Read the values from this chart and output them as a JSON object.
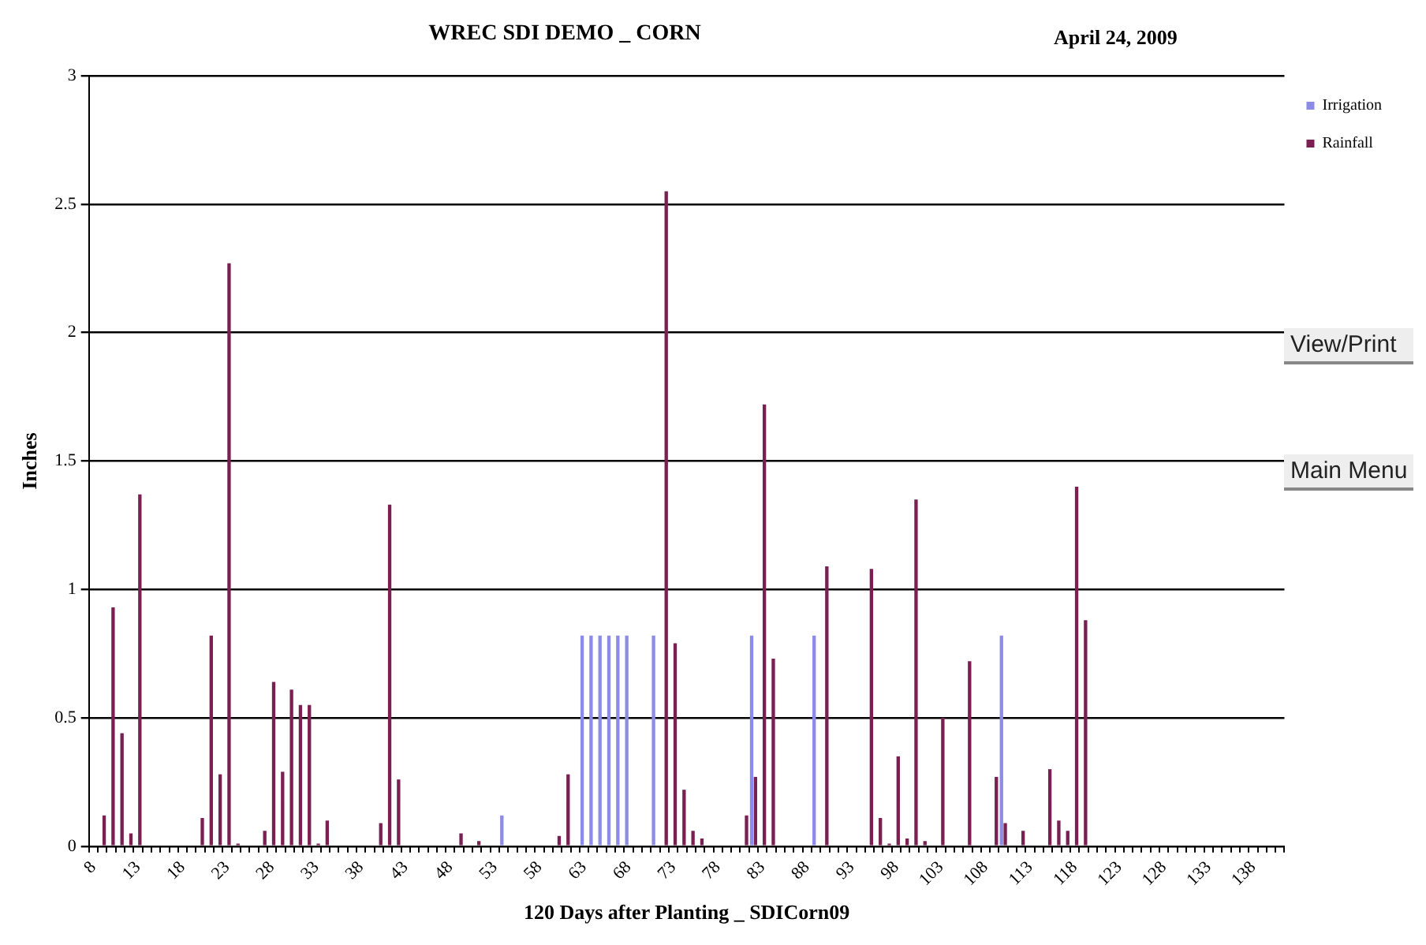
{
  "chart_data": {
    "type": "bar",
    "title": "WREC SDI DEMO _ CORN",
    "xlabel": "120 Days after Planting _ SDICorn09",
    "ylabel": "Inches",
    "annotations": [
      "April 24, 2009",
      "View/Print",
      "Main Menu"
    ],
    "categories": [
      "8",
      null,
      null,
      null,
      null,
      "13",
      null,
      null,
      null,
      null,
      "18",
      null,
      null,
      null,
      null,
      "23",
      null,
      null,
      null,
      null,
      "28",
      null,
      null,
      null,
      null,
      "33",
      null,
      null,
      null,
      null,
      "38",
      null,
      null,
      null,
      null,
      "43",
      null,
      null,
      null,
      null,
      "48",
      null,
      null,
      null,
      null,
      "53",
      null,
      null,
      null,
      null,
      "58",
      null,
      null,
      null,
      null,
      "63",
      null,
      null,
      null,
      null,
      "68",
      null,
      null,
      null,
      null,
      "73",
      null,
      null,
      null,
      null,
      "78",
      null,
      null,
      null,
      null,
      "83",
      null,
      null,
      null,
      null,
      "88",
      null,
      null,
      null,
      null,
      "93",
      null,
      null,
      null,
      null,
      "98",
      null,
      null,
      null,
      null,
      "103",
      null,
      null,
      null,
      null,
      "108",
      null,
      null,
      null,
      null,
      "113",
      null,
      null,
      null,
      null,
      "118",
      null,
      null,
      null,
      null,
      "123",
      null,
      null,
      null,
      null,
      "128",
      null,
      null,
      null,
      null,
      "133",
      null,
      null,
      null,
      null,
      "138",
      null,
      null,
      null
    ],
    "series": [
      {
        "name": "Irrigation",
        "color": "#8c8ce6",
        "values": [
          null,
          null,
          null,
          null,
          null,
          null,
          null,
          null,
          null,
          null,
          null,
          null,
          null,
          null,
          null,
          null,
          null,
          null,
          null,
          null,
          null,
          null,
          null,
          null,
          null,
          null,
          null,
          null,
          null,
          null,
          null,
          null,
          null,
          null,
          null,
          null,
          null,
          null,
          null,
          null,
          null,
          null,
          null,
          null,
          null,
          null,
          0.12,
          null,
          null,
          null,
          null,
          null,
          null,
          null,
          null,
          0.82,
          0.82,
          0.82,
          0.82,
          0.82,
          0.82,
          null,
          null,
          0.82,
          null,
          null,
          null,
          null,
          null,
          null,
          null,
          null,
          null,
          null,
          0.82,
          null,
          null,
          null,
          null,
          null,
          null,
          0.82,
          null,
          null,
          null,
          null,
          null,
          null,
          null,
          null,
          null,
          null,
          null,
          null,
          null,
          null,
          null,
          null,
          null,
          null,
          null,
          null,
          0.82,
          null,
          null,
          null,
          null,
          null,
          null,
          null,
          null,
          null,
          null,
          null,
          null,
          null,
          null,
          null,
          null,
          null,
          null,
          null,
          null,
          null,
          null,
          null,
          null,
          null,
          null,
          null,
          null,
          null,
          null,
          null
        ]
      },
      {
        "name": "Rainfall",
        "color": "#7a1f52",
        "values": [
          null,
          0.12,
          0.93,
          0.44,
          0.05,
          1.37,
          null,
          null,
          null,
          null,
          null,
          null,
          0.11,
          0.82,
          0.28,
          2.27,
          0.01,
          null,
          null,
          0.06,
          0.64,
          0.29,
          0.61,
          0.55,
          0.55,
          0.01,
          0.1,
          null,
          null,
          null,
          null,
          null,
          0.09,
          1.33,
          0.26,
          null,
          null,
          null,
          null,
          null,
          null,
          0.05,
          null,
          0.02,
          null,
          null,
          null,
          null,
          null,
          null,
          null,
          null,
          0.04,
          0.28,
          null,
          null,
          null,
          null,
          null,
          null,
          null,
          null,
          null,
          null,
          2.55,
          0.79,
          0.22,
          0.06,
          0.03,
          null,
          null,
          null,
          null,
          0.12,
          0.27,
          1.72,
          0.73,
          null,
          null,
          null,
          null,
          null,
          1.09,
          null,
          null,
          null,
          null,
          1.08,
          0.11,
          0.01,
          0.35,
          0.03,
          1.35,
          0.02,
          null,
          0.5,
          null,
          null,
          0.72,
          null,
          null,
          0.27,
          0.09,
          null,
          0.06,
          null,
          null,
          0.3,
          0.1,
          0.06,
          1.4,
          0.88,
          null,
          null,
          null,
          null,
          null,
          null,
          null,
          null,
          null,
          null,
          null,
          null,
          null,
          null,
          null,
          null,
          null,
          null,
          null,
          null,
          null,
          null
        ]
      }
    ],
    "ylim": [
      0,
      3
    ],
    "yticks": [
      0,
      0.5,
      1,
      1.5,
      2,
      2.5,
      3
    ],
    "grid": "y",
    "legend": "top right"
  }
}
